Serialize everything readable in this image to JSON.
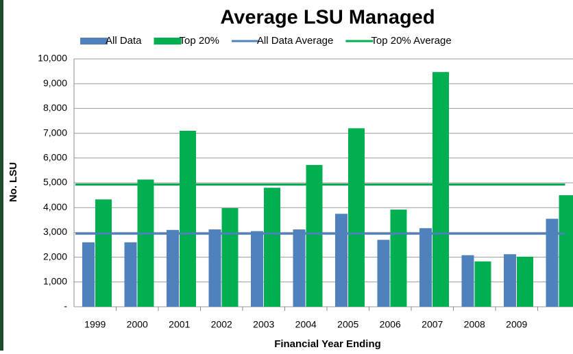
{
  "chart_data": {
    "type": "bar",
    "title": "Average LSU Managed",
    "x_label": "Financial Year Ending",
    "y_label": "No. LSU",
    "categories": [
      "1999",
      "2000",
      "2001",
      "2002",
      "2003",
      "2004",
      "2005",
      "2006",
      "2007",
      "2008",
      "2009",
      null
    ],
    "series": [
      {
        "name": "All Data",
        "color": "#4f81bd",
        "values": [
          2600,
          2600,
          3100,
          3120,
          3050,
          3120,
          3750,
          2700,
          3170,
          2080,
          2120,
          3550
        ]
      },
      {
        "name": "Top 20%",
        "color": "#00b050",
        "values": [
          4330,
          5130,
          7100,
          3980,
          4800,
          5720,
          7200,
          3920,
          9470,
          1830,
          2020,
          4500
        ]
      },
      {
        "name": "All Data Average",
        "color": "#4f81bd",
        "type": "line",
        "value": 2950
      },
      {
        "name": "Top 20% Average",
        "color": "#00b050",
        "type": "line",
        "value": 4930
      }
    ],
    "ylim": [
      0,
      10000
    ],
    "yticks": [
      {
        "value": 0,
        "label": "-"
      },
      {
        "value": 1000,
        "label": "1,000"
      },
      {
        "value": 2000,
        "label": "2,000"
      },
      {
        "value": 3000,
        "label": "3,000"
      },
      {
        "value": 4000,
        "label": "4,000"
      },
      {
        "value": 5000,
        "label": "5,000"
      },
      {
        "value": 6000,
        "label": "6,000"
      },
      {
        "value": 7000,
        "label": "7,000"
      },
      {
        "value": 8000,
        "label": "8,000"
      },
      {
        "value": 9000,
        "label": "9,000"
      },
      {
        "value": 10000,
        "label": "10,000"
      }
    ],
    "grid": true,
    "legend": "top"
  }
}
